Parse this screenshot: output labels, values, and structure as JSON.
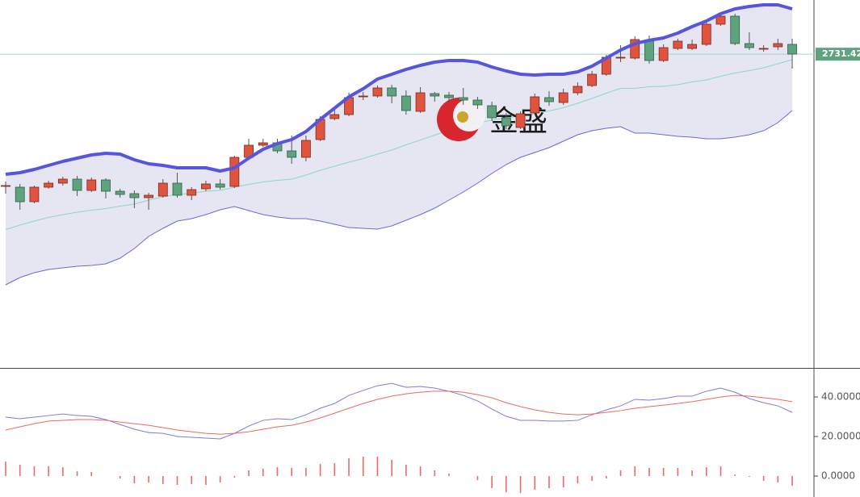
{
  "chart_data": [
    {
      "type": "candlestick",
      "ylim": [
        2537.5,
        2765
      ],
      "price_line": 2731.42,
      "price_color": "#5fa27e",
      "watermark": "金盛",
      "up_color": "#e0533f",
      "down_color": "#5fa27e",
      "band_fill": "#e6e6f2",
      "open": [
        2650,
        2649,
        2640,
        2649,
        2651.5,
        2654,
        2647,
        2653.5,
        2646.5,
        2645,
        2642.5,
        2643.5,
        2651.5,
        2644,
        2648,
        2651,
        2649.5,
        2667.5,
        2675,
        2676.5,
        2671.5,
        2667.5,
        2678.5,
        2691.5,
        2694,
        2705.5,
        2705.5,
        2710.5,
        2705.5,
        2696,
        2707,
        2706,
        2704.5,
        2703,
        2699.5,
        2692,
        2686,
        2695,
        2704.5,
        2701.5,
        2707.5,
        2712,
        2719,
        2729.5,
        2729,
        2739.5,
        2727.5,
        2735,
        2735,
        2737.5,
        2750,
        2755,
        2738,
        2735,
        2736,
        2737.5
      ],
      "high": [
        2652.5,
        2651,
        2650,
        2653,
        2655.5,
        2656,
        2655,
        2654.5,
        2648,
        2647,
        2645.5,
        2654,
        2658,
        2649,
        2653,
        2654,
        2668.5,
        2679,
        2679,
        2679,
        2681,
        2681,
        2693,
        2697,
        2707.5,
        2708,
        2712,
        2712.5,
        2709,
        2711,
        2708,
        2708,
        2710.5,
        2705,
        2702,
        2695,
        2696,
        2707,
        2708.5,
        2710,
        2714,
        2721,
        2731,
        2737,
        2742.5,
        2743,
        2737.5,
        2741,
        2740.5,
        2751,
        2757,
        2756.5,
        2745,
        2737,
        2741,
        2741
      ],
      "low": [
        2645,
        2635,
        2639,
        2648,
        2650,
        2643.5,
        2646,
        2642,
        2642.5,
        2636,
        2635,
        2642.5,
        2642.5,
        2641,
        2646.5,
        2647.5,
        2648.5,
        2667,
        2674,
        2670,
        2663.5,
        2665,
        2677.5,
        2690.5,
        2693,
        2703,
        2704.5,
        2701,
        2694,
        2695,
        2702,
        2701.5,
        2700,
        2697.5,
        2690,
        2685,
        2685,
        2694,
        2699.5,
        2700,
        2706,
        2711,
        2718,
        2726.5,
        2728,
        2725.5,
        2726.5,
        2734,
        2734,
        2736.5,
        2749,
        2737,
        2734,
        2733,
        2734,
        2722.5
      ],
      "close": [
        2650,
        2640,
        2649,
        2651.5,
        2654,
        2647,
        2653.5,
        2646.5,
        2644.5,
        2642.5,
        2644,
        2651.5,
        2644,
        2647.5,
        2651,
        2649,
        2667.5,
        2675,
        2676.5,
        2671.5,
        2667.5,
        2678,
        2691,
        2694,
        2704.5,
        2705.5,
        2710.5,
        2705.5,
        2696.5,
        2707.5,
        2705.5,
        2704.5,
        2703,
        2700,
        2692,
        2687,
        2694.5,
        2705,
        2702,
        2707.5,
        2711.5,
        2719,
        2729.5,
        2729.5,
        2740.5,
        2727.5,
        2735.5,
        2739.5,
        2737.5,
        2750,
        2755,
        2738,
        2735.5,
        2735,
        2738,
        2731.5
      ],
      "bands": [
        {
          "color": "#5555e0",
          "values": [
            2657,
            2658,
            2660,
            2662.5,
            2665,
            2667,
            2669,
            2670,
            2669.5,
            2666,
            2663.5,
            2662.5,
            2661,
            2661,
            2661,
            2659,
            2661,
            2667,
            2672.5,
            2676,
            2678.5,
            2683.5,
            2691,
            2698,
            2705,
            2710,
            2716,
            2719,
            2722,
            2724.5,
            2726.5,
            2727.5,
            2727.5,
            2726.5,
            2723.5,
            2721,
            2719,
            2718.5,
            2719,
            2719,
            2720.5,
            2724,
            2729,
            2734,
            2738,
            2740,
            2741.5,
            2744.5,
            2748.5,
            2752,
            2756.5,
            2759.5,
            2761,
            2762,
            2762,
            2759.5
          ]
        },
        {
          "color": "#8ad8c4",
          "values": [
            2622.75,
            2625.5,
            2628,
            2630.25,
            2632,
            2633.5,
            2634.75,
            2635.75,
            2637.25,
            2638.5,
            2641,
            2643,
            2644.5,
            2645.25,
            2646.5,
            2647,
            2649,
            2650.75,
            2652.25,
            2653.25,
            2654,
            2656.5,
            2659.5,
            2662,
            2664.5,
            2666.75,
            2669.5,
            2672,
            2675.25,
            2678.25,
            2681.25,
            2684.25,
            2686.75,
            2689,
            2690.5,
            2692,
            2693.25,
            2694.5,
            2696.25,
            2698.25,
            2701,
            2704,
            2707.25,
            2710.25,
            2710.25,
            2711.25,
            2711.5,
            2712.5,
            2714.25,
            2715.5,
            2717.75,
            2719.75,
            2721.25,
            2723,
            2725.5,
            2728
          ]
        },
        {
          "color": "#6a6ad8",
          "values": [
            2588.5,
            2593,
            2596,
            2598,
            2599,
            2600,
            2600.5,
            2601.5,
            2605,
            2611,
            2618.5,
            2623.5,
            2628,
            2629.5,
            2632,
            2635,
            2637,
            2634.5,
            2632,
            2630.5,
            2629.5,
            2629.5,
            2628,
            2626,
            2624,
            2623.5,
            2623,
            2625,
            2628.5,
            2632,
            2636,
            2641,
            2646,
            2651.5,
            2657.5,
            2663,
            2667.5,
            2670.5,
            2673.5,
            2677.5,
            2681.5,
            2684,
            2685.5,
            2686.5,
            2682.5,
            2682.5,
            2681.5,
            2680.5,
            2680,
            2679,
            2679,
            2680,
            2681.5,
            2684,
            2689,
            2696.5
          ]
        }
      ]
    },
    {
      "type": "macd",
      "ylim": [
        -10.6,
        54.3
      ],
      "yticks": [
        {
          "value": 40,
          "label": "40.0000"
        },
        {
          "value": 20,
          "label": "20.0000"
        },
        {
          "value": 0,
          "label": "0.0000"
        }
      ],
      "series": [
        {
          "color": "#7b7be0",
          "values": [
            29.8,
            29.0,
            29.8,
            30.6,
            31.4,
            30.6,
            30.2,
            28.6,
            26.1,
            23.7,
            22.0,
            21.6,
            20.0,
            19.6,
            19.2,
            18.8,
            21.6,
            25.3,
            28.2,
            29.0,
            28.6,
            31.0,
            34.3,
            36.7,
            40.8,
            43.3,
            45.7,
            46.9,
            44.9,
            45.3,
            44.5,
            42.9,
            40.8,
            38.0,
            33.9,
            30.2,
            28.2,
            28.2,
            27.8,
            27.8,
            28.2,
            31.0,
            33.5,
            35.5,
            38.8,
            38.4,
            39.2,
            40.4,
            40.4,
            42.9,
            44.5,
            42.4,
            39.2,
            37.1,
            35.5,
            32.2
          ]
        },
        {
          "color": "#ec6a5e",
          "values": [
            23.3,
            24.9,
            26.5,
            27.8,
            28.2,
            28.6,
            28.6,
            28.2,
            27.3,
            26.5,
            25.7,
            24.5,
            23.3,
            22.4,
            21.6,
            21.2,
            21.6,
            22.4,
            23.7,
            24.9,
            25.7,
            27.3,
            29.4,
            31.8,
            34.3,
            36.7,
            38.8,
            40.4,
            41.6,
            42.4,
            42.9,
            42.9,
            42.4,
            41.2,
            39.6,
            37.1,
            35.1,
            33.5,
            32.2,
            31.4,
            31.0,
            31.4,
            32.2,
            33.1,
            34.3,
            35.1,
            35.9,
            36.7,
            37.6,
            38.8,
            40.0,
            40.8,
            40.4,
            39.6,
            38.8,
            37.6
          ]
        }
      ],
      "bars": {
        "color": "#ee6a62",
        "values": [
          7.3,
          5.7,
          4.9,
          4.9,
          4.5,
          2.4,
          2.0,
          0,
          -1.2,
          -3.7,
          -3.3,
          -4.1,
          -4.5,
          -4.1,
          -4.5,
          -3.3,
          -0.8,
          2.9,
          3.7,
          4.5,
          4.1,
          4.1,
          6.1,
          6.5,
          9.0,
          9.8,
          9.8,
          8.2,
          5.7,
          4.9,
          2.9,
          1.2,
          0,
          -2.0,
          -6.1,
          -8.2,
          -8.6,
          -6.9,
          -6.1,
          -5.7,
          -3.7,
          -2.4,
          -1.2,
          2.9,
          4.9,
          4.1,
          4.1,
          4.1,
          2.9,
          4.5,
          4.9,
          0.8,
          -0.4,
          -2.4,
          -3.3,
          -4.9
        ]
      }
    }
  ]
}
